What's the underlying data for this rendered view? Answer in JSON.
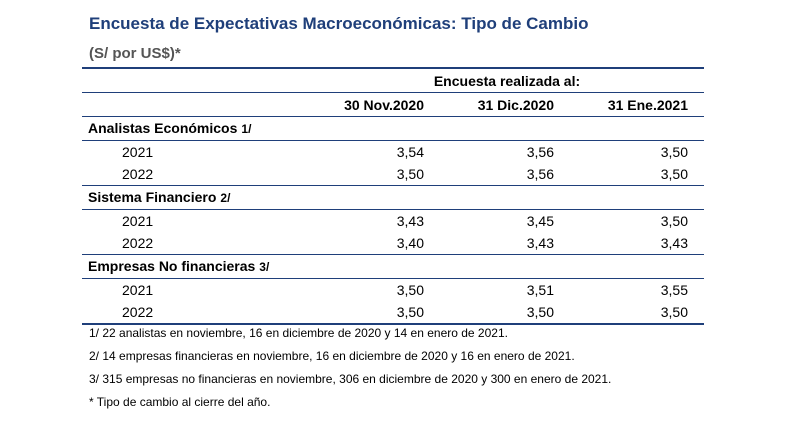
{
  "title": "Encuesta de Expectativas Macroeconómicas: Tipo de Cambio",
  "subtitle": "(S/ por US$)*",
  "table": {
    "survey_header": "Encuesta realizada al:",
    "dates": [
      "30 Nov.2020",
      "31 Dic.2020",
      "31 Ene.2021"
    ],
    "groups": [
      {
        "label": "Analistas Económicos",
        "marker": "1/",
        "rows": [
          {
            "year": "2021",
            "values": [
              "3,54",
              "3,56",
              "3,50"
            ]
          },
          {
            "year": "2022",
            "values": [
              "3,50",
              "3,56",
              "3,50"
            ]
          }
        ]
      },
      {
        "label": "Sistema Financiero",
        "marker": "2/",
        "rows": [
          {
            "year": "2021",
            "values": [
              "3,43",
              "3,45",
              "3,50"
            ]
          },
          {
            "year": "2022",
            "values": [
              "3,40",
              "3,43",
              "3,43"
            ]
          }
        ]
      },
      {
        "label": "Empresas No financieras",
        "marker": "3/",
        "rows": [
          {
            "year": "2021",
            "values": [
              "3,50",
              "3,51",
              "3,55"
            ]
          },
          {
            "year": "2022",
            "values": [
              "3,50",
              "3,50",
              "3,50"
            ]
          }
        ]
      }
    ]
  },
  "notes": [
    "1/ 22 analistas en noviembre, 16 en diciembre de 2020 y 14 en enero de 2021.",
    "2/ 14 empresas financieras en noviembre, 16 en diciembre de 2020 y 16 en enero de 2021.",
    "3/ 315 empresas no financieras en noviembre, 306 en diciembre de 2020 y 300 en enero de 2021.",
    "* Tipo de cambio al cierre del año."
  ],
  "colors": {
    "accent": "#1f3f7a",
    "subtitle": "#555555"
  }
}
